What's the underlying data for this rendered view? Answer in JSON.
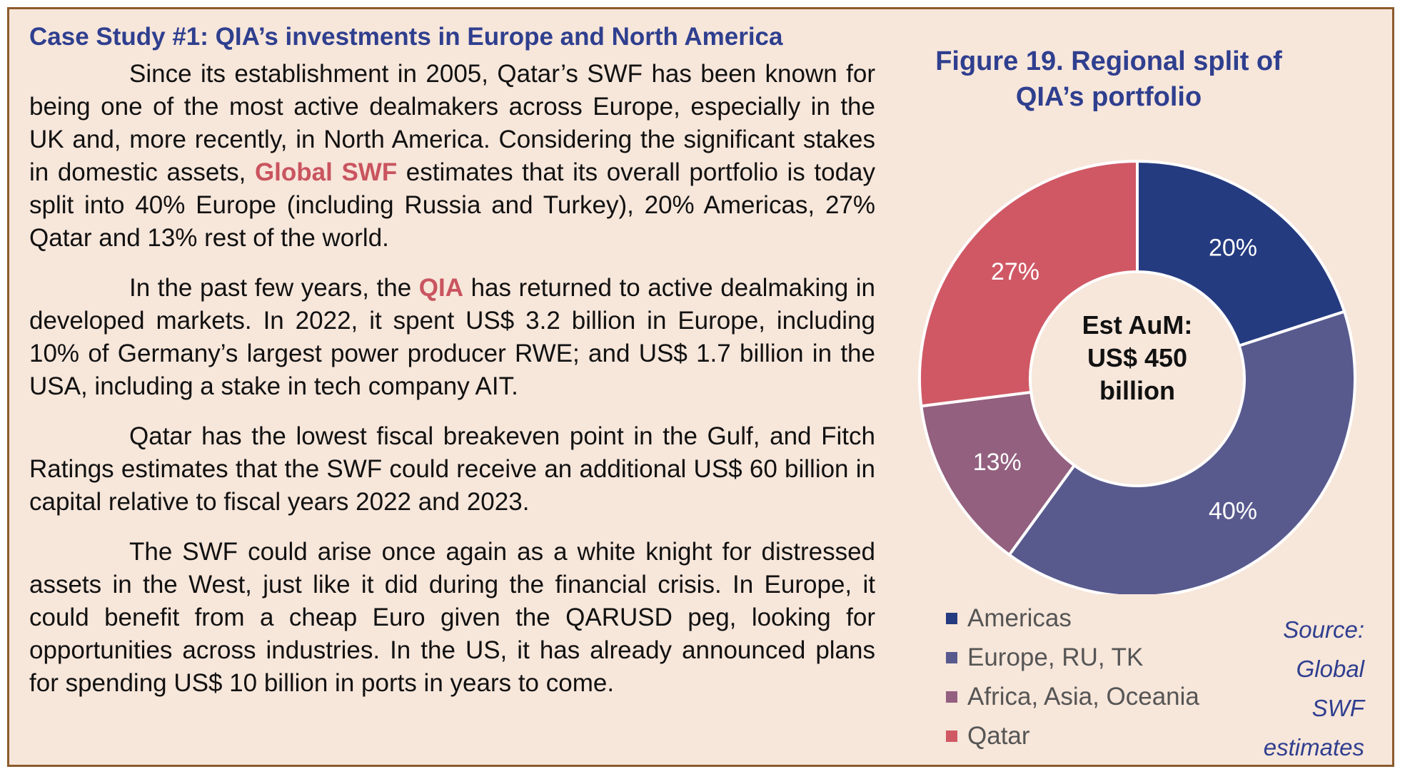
{
  "case_study": {
    "heading": "Case Study #1: QIA’s investments in Europe and North America",
    "paragraphs": [
      {
        "a": "Since its establishment in 2005, Qatar’s SWF has been known for being one of the most active dealmakers across Europe, especially in the UK and, more recently, in North America. Considering the significant stakes in domestic assets, ",
        "highlight": "Global SWF",
        "b": " estimates that its overall portfolio is today split into 40% Europe (including Russia and Turkey), 20% Americas, 27% Qatar and 13% rest of the world."
      },
      {
        "a": "In the past few years, the ",
        "highlight": "QIA",
        "b": " has returned to active dealmaking in developed markets. In 2022, it spent US$ 3.2 billion in Europe, including 10% of Germany’s largest power producer RWE; and US$ 1.7 billion in the USA, including a stake in tech company AIT."
      },
      {
        "text": "Qatar has the lowest fiscal breakeven point in the Gulf, and Fitch Ratings estimates that the SWF could receive an additional US$ 60 billion in capital relative to fiscal years 2022 and 2023."
      },
      {
        "text": "The SWF could arise once again as a white knight for distressed assets in the West, just like it did during the financial crisis. In Europe, it could benefit from a cheap Euro given the QARUSD peg, looking for opportunities across industries. In the US, it has already announced plans for spending US$ 10 billion in ports in years to come."
      }
    ]
  },
  "chart_data": {
    "type": "pie",
    "title": "Figure 19. Regional split of QIA’s portfolio",
    "center_label": [
      "Est AuM:",
      "US$ 450",
      "billion"
    ],
    "categories": [
      "Americas",
      "Europe, RU, TK",
      "Africa, Asia, Oceania",
      "Qatar"
    ],
    "values": [
      20,
      40,
      13,
      27
    ],
    "data_labels": [
      "20%",
      "40%",
      "13%",
      "27%"
    ],
    "colors": [
      "#253b80",
      "#585a8e",
      "#93607f",
      "#d05865"
    ],
    "legend_placement": "bottom-left",
    "source": [
      "Source:",
      "Global",
      "SWF",
      "estimates"
    ]
  }
}
